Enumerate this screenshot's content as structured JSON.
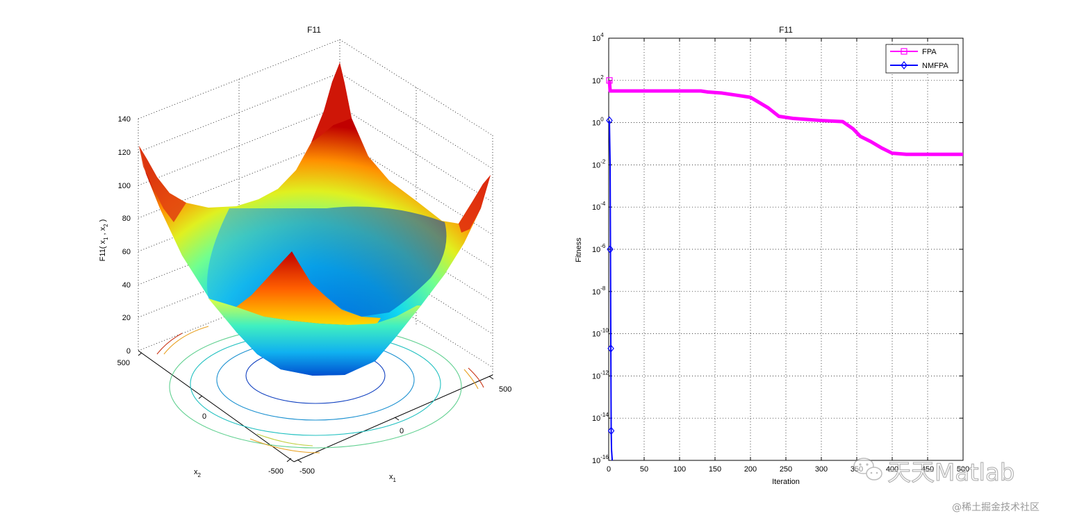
{
  "chart_data": [
    {
      "type": "surface",
      "title": "F11",
      "xlabel": "x",
      "xlabel_sub": "1",
      "ylabel": "x",
      "ylabel_sub": "2",
      "zlabel_main": "F11( x",
      "zlabel_sub1": "1",
      "zlabel_mid": " , x",
      "zlabel_sub2": "2",
      "zlabel_end": " )",
      "x_ticks": [
        "-500",
        "0",
        "500"
      ],
      "y_ticks": [
        "-500",
        "0",
        "500"
      ],
      "z_ticks": [
        "0",
        "20",
        "40",
        "60",
        "80",
        "100",
        "120",
        "140"
      ],
      "xlim": [
        -500,
        500
      ],
      "ylim": [
        -500,
        500
      ],
      "zlim": [
        0,
        140
      ],
      "colormap": "jet",
      "contour_colors": [
        "#1040c0",
        "#1a90d0",
        "#20c0c0",
        "#60d090",
        "#c0d040",
        "#e8a020",
        "#c83010"
      ]
    },
    {
      "type": "line",
      "title": "F11",
      "xlabel": "Iteration",
      "ylabel": "Fitness",
      "yscale": "log",
      "xlim": [
        0,
        500
      ],
      "ylim_exp": [
        -16,
        4
      ],
      "x_ticks": [
        "0",
        "50",
        "100",
        "150",
        "200",
        "250",
        "300",
        "350",
        "400",
        "450",
        "500"
      ],
      "y_tick_exponents": [
        "4",
        "2",
        "0",
        "-2",
        "-4",
        "-6",
        "-8",
        "-10",
        "-12",
        "-14",
        "-16"
      ],
      "y_tick_base": "10",
      "series": [
        {
          "name": "FPA",
          "color": "#ff00ff",
          "marker": "square",
          "points_log10": [
            [
              1,
              2.0
            ],
            [
              2,
              1.5
            ],
            [
              5,
              1.5
            ],
            [
              130,
              1.5
            ],
            [
              140,
              1.45
            ],
            [
              160,
              1.4
            ],
            [
              180,
              1.3
            ],
            [
              200,
              1.2
            ],
            [
              210,
              1.0
            ],
            [
              225,
              0.7
            ],
            [
              240,
              0.3
            ],
            [
              260,
              0.2
            ],
            [
              300,
              0.1
            ],
            [
              330,
              0.05
            ],
            [
              345,
              -0.3
            ],
            [
              355,
              -0.65
            ],
            [
              370,
              -0.9
            ],
            [
              385,
              -1.2
            ],
            [
              400,
              -1.45
            ],
            [
              420,
              -1.5
            ],
            [
              450,
              -1.5
            ],
            [
              500,
              -1.5
            ]
          ],
          "marker_points_log10": [
            [
              1,
              2.0
            ]
          ]
        },
        {
          "name": "NMFPA",
          "color": "#0000ff",
          "marker": "diamond",
          "points_log10": [
            [
              1,
              0.1
            ],
            [
              2,
              -2
            ],
            [
              2.5,
              -6
            ],
            [
              3,
              -10.7
            ],
            [
              3.5,
              -14.6
            ],
            [
              4,
              -15.5
            ],
            [
              5,
              -16
            ]
          ],
          "marker_points_log10": [
            [
              1,
              0.1
            ],
            [
              2,
              -6
            ],
            [
              3,
              -10.7
            ],
            [
              3.5,
              -14.6
            ]
          ]
        }
      ]
    }
  ],
  "watermark": {
    "brand": "天天Matlab",
    "site": "@稀土掘金技术社区"
  }
}
